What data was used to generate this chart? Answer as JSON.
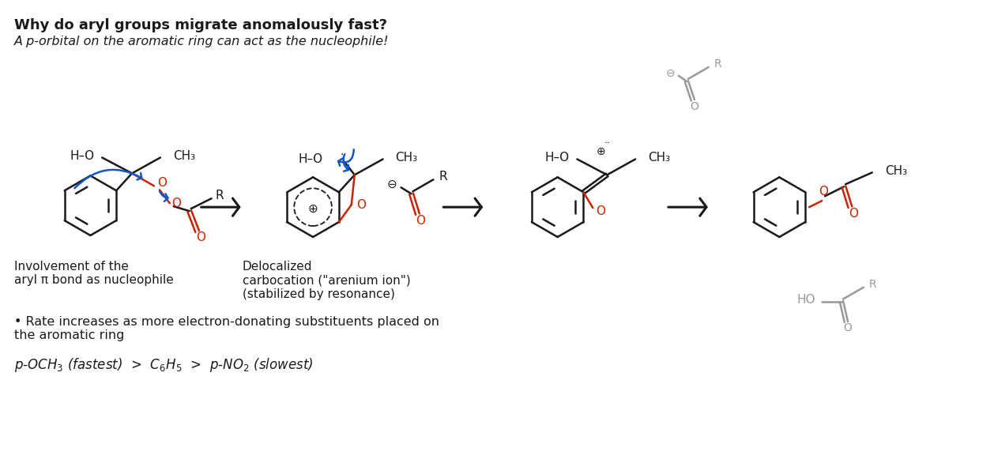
{
  "title": "Why do aryl groups migrate anomalously fast?",
  "subtitle": "A p-orbital on the aromatic ring can act as the nucleophile!",
  "label1": "Involvement of the\naryl π bond as nucleophile",
  "label2": "Delocalized\ncarbocation (\"arenium ion\")\n(stabilized by resonance)",
  "rate_text": "• Rate increases as more electron-donating substituents placed on\nthe aromatic ring",
  "bg_color": "#ffffff",
  "black": "#1a1a1a",
  "red": "#cc2200",
  "blue": "#1155cc",
  "gray": "#999999",
  "lw": 1.8,
  "ring_r": 38
}
